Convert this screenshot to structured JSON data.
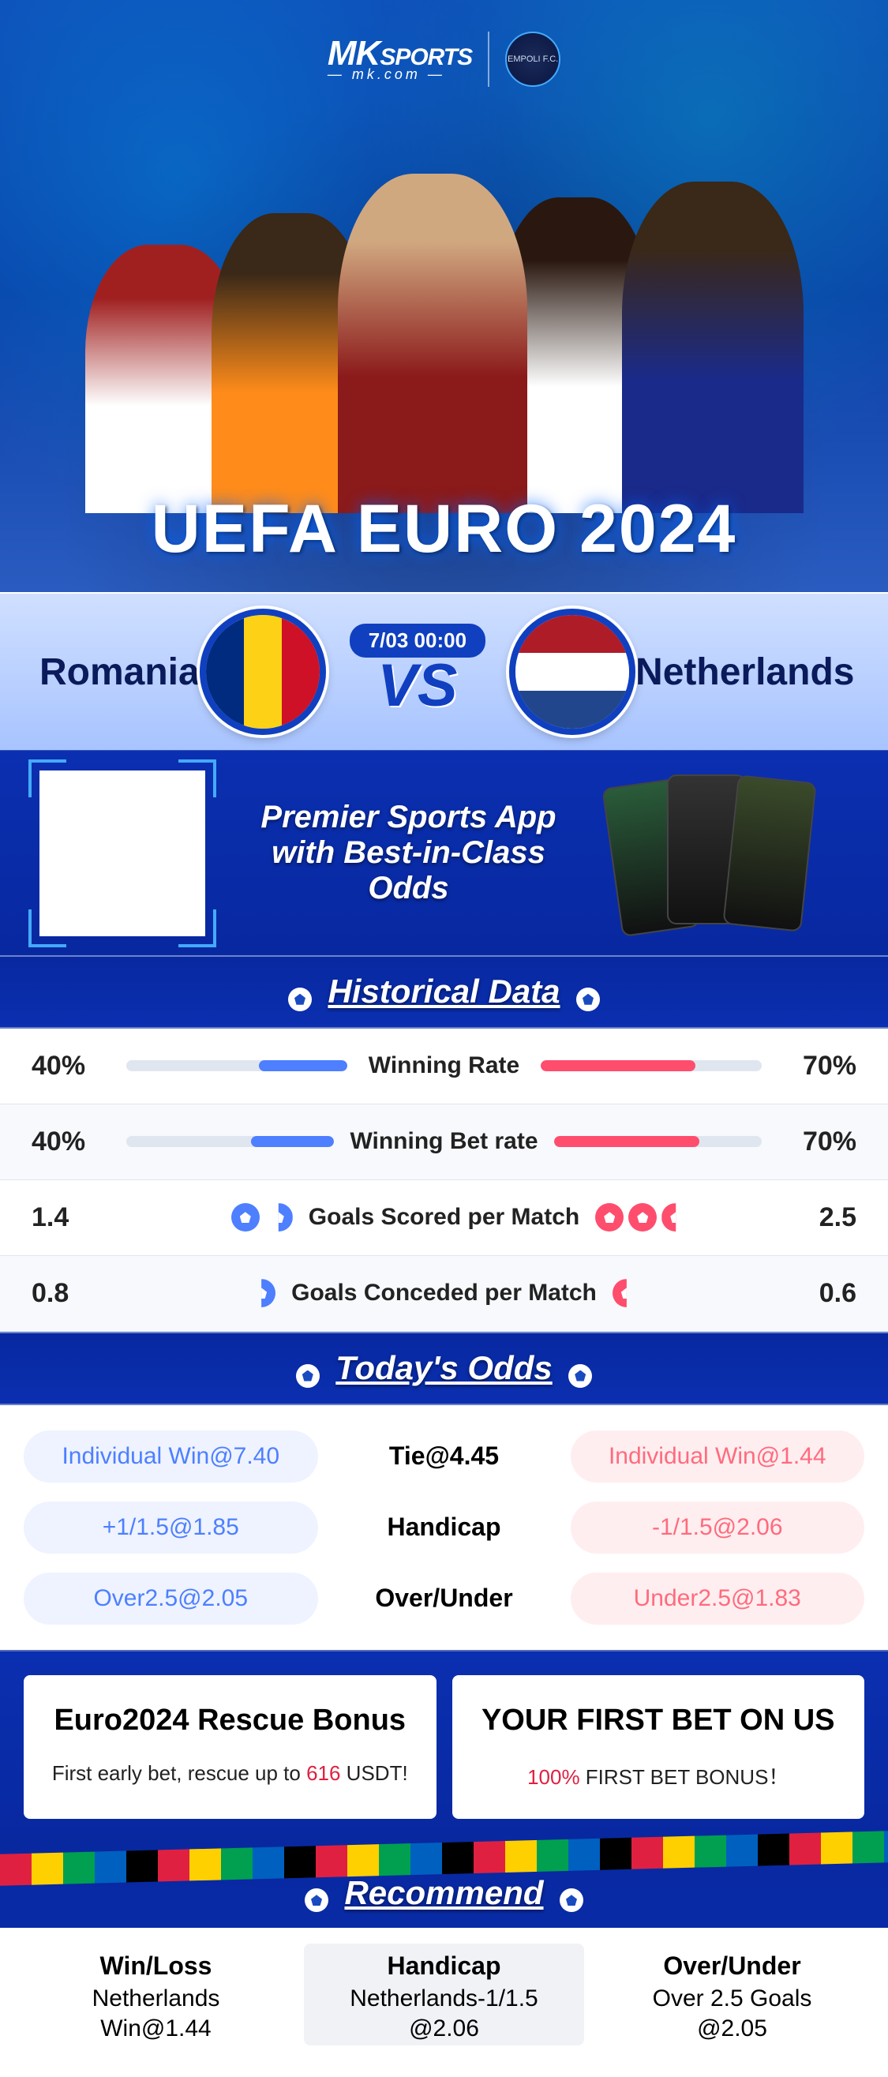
{
  "brand": {
    "name": "MK",
    "suffix": "SPORTS",
    "tag": "— mk.com —",
    "crest": "EMPOLI F.C."
  },
  "hero_title": "UEFA EURO 2024",
  "match": {
    "team_a": "Romania",
    "team_b": "Netherlands",
    "datetime": "7/03 00:00",
    "vs": "VS"
  },
  "promo": {
    "line1": "Premier Sports App",
    "line2": "with Best-in-Class Odds"
  },
  "sections": {
    "historical": "Historical Data",
    "odds": "Today's Odds",
    "recommend": "Recommend"
  },
  "historical": {
    "rows": [
      {
        "label": "Winning Rate",
        "left_val": "40%",
        "right_val": "70%",
        "left_pct": 40,
        "right_pct": 70,
        "type": "bar"
      },
      {
        "label": "Winning Bet rate",
        "left_val": "40%",
        "right_val": "70%",
        "left_pct": 40,
        "right_pct": 70,
        "type": "bar"
      },
      {
        "label": "Goals Scored per Match",
        "left_val": "1.4",
        "right_val": "2.5",
        "left_balls": 1.4,
        "right_balls": 2.5,
        "type": "balls"
      },
      {
        "label": "Goals Conceded per Match",
        "left_val": "0.8",
        "right_val": "0.6",
        "left_balls": 0.8,
        "right_balls": 0.6,
        "type": "balls"
      }
    ],
    "left_color": "#4d7fff",
    "right_color": "#ff4d6d"
  },
  "odds": [
    {
      "left": "Individual Win@7.40",
      "mid": "Tie@4.45",
      "right": "Individual Win@1.44"
    },
    {
      "left": "+1/1.5@1.85",
      "mid": "Handicap",
      "right": "-1/1.5@2.06"
    },
    {
      "left": "Over2.5@2.05",
      "mid": "Over/Under",
      "right": "Under2.5@1.83"
    }
  ],
  "bonus": [
    {
      "title": "Euro2024 Rescue Bonus",
      "sub_pre": "First early bet, rescue up to ",
      "sub_red": "616",
      "sub_post": " USDT!"
    },
    {
      "title": "YOUR FIRST BET ON US",
      "sub_pre": "",
      "sub_red": "100%",
      "sub_post": " FIRST BET BONUS！"
    }
  ],
  "recommend": [
    {
      "t": "Win/Loss",
      "v1": "Netherlands",
      "v2": "Win@1.44"
    },
    {
      "t": "Handicap",
      "v1": "Netherlands-1/1.5",
      "v2": "@2.06"
    },
    {
      "t": "Over/Under",
      "v1": "Over 2.5 Goals",
      "v2": "@2.05"
    }
  ]
}
